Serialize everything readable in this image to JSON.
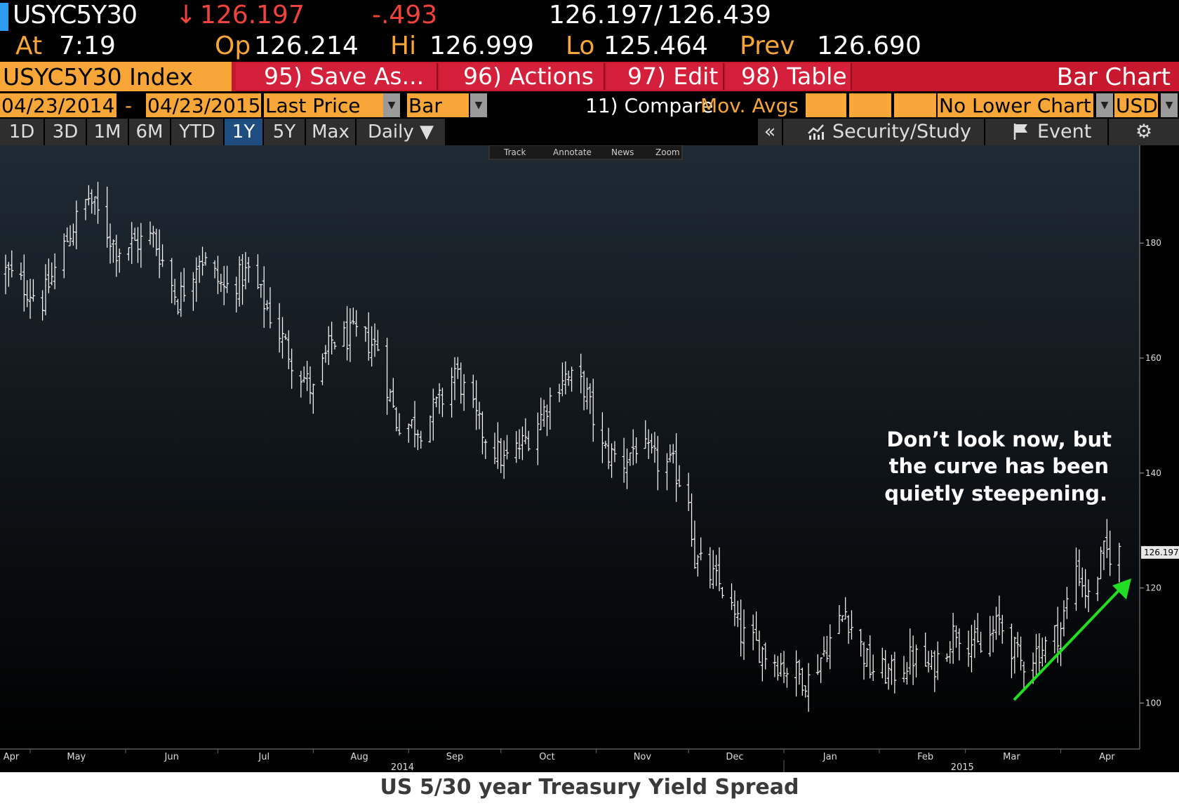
{
  "quote": {
    "ticker": "USYC5Y30",
    "last_arrow": "↓",
    "last": "126.197",
    "change": "-.493",
    "bid_ask_bid": "126.197",
    "bid_ask_sep": "/",
    "bid_ask_ask": "126.439",
    "at_label": "At",
    "time": "7:19",
    "open_label": "Op",
    "open": "126.214",
    "high_label": "Hi",
    "high": "126.999",
    "low_label": "Lo",
    "low": "125.464",
    "prev_label": "Prev",
    "prev": "126.690"
  },
  "menu": {
    "index": "USYC5Y30 Index",
    "save": "95) Save As...",
    "actions": "96) Actions ▾",
    "edit": "97) Edit ▾",
    "table": "98) Table",
    "title": "Bar Chart"
  },
  "controls": {
    "start_date": "04/23/2014",
    "dash": "-",
    "end_date": "04/23/2015",
    "field": "Last Price",
    "chart_type": "Bar",
    "compare": "11) Compare",
    "mov_avgs": "Mov. Avgs",
    "lower_chart": "No Lower Chart",
    "currency": "USD"
  },
  "periods": [
    "1D",
    "3D",
    "1M",
    "6M",
    "YTD",
    "1Y",
    "5Y",
    "Max"
  ],
  "active_period": "1Y",
  "frequency": "Daily ▼",
  "tools": {
    "collapse": "«",
    "security_study": "Security/Study",
    "event": "Event"
  },
  "mini_toolbar": [
    "Track",
    "Annotate",
    "News",
    "Zoom"
  ],
  "annotation": {
    "lines": [
      "Don’t look now, but",
      "the curve has been",
      "quietly steepening."
    ]
  },
  "caption": "US 5/30 year Treasury Yield Spread",
  "colors": {
    "background_top": "#1f2a33",
    "background_bottom": "#000000",
    "bars": "#ffffff",
    "arrow": "#22dd22",
    "accent_orange": "#f7a637",
    "accent_red": "#c8182d"
  },
  "chart_data": {
    "type": "bar",
    "subtype": "OHLC",
    "frequency": "Daily",
    "x_range": [
      "2014-04-23",
      "2015-04-23"
    ],
    "ylim": [
      92,
      197
    ],
    "ytick_values": [
      100,
      120,
      140,
      160,
      180
    ],
    "month_labels": [
      "Apr",
      "May",
      "Jun",
      "Jul",
      "Aug",
      "Sep",
      "Oct",
      "Nov",
      "Dec",
      "Jan",
      "Feb",
      "Mar",
      "Apr"
    ],
    "year_labels": [
      "2014",
      "2015"
    ],
    "last_value_label": "126.197",
    "trend_anchors": [
      {
        "date": "2014-04-23",
        "value": 175
      },
      {
        "date": "2014-05-05",
        "value": 170
      },
      {
        "date": "2014-05-14",
        "value": 182
      },
      {
        "date": "2014-05-20",
        "value": 188
      },
      {
        "date": "2014-05-29",
        "value": 179
      },
      {
        "date": "2014-06-10",
        "value": 181
      },
      {
        "date": "2014-06-18",
        "value": 170
      },
      {
        "date": "2014-06-25",
        "value": 178
      },
      {
        "date": "2014-07-03",
        "value": 172
      },
      {
        "date": "2014-07-11",
        "value": 175
      },
      {
        "date": "2014-07-25",
        "value": 160
      },
      {
        "date": "2014-08-01",
        "value": 154
      },
      {
        "date": "2014-08-07",
        "value": 163
      },
      {
        "date": "2014-08-15",
        "value": 164
      },
      {
        "date": "2014-08-22",
        "value": 162
      },
      {
        "date": "2014-08-28",
        "value": 149
      },
      {
        "date": "2014-09-05",
        "value": 148
      },
      {
        "date": "2014-09-12",
        "value": 153
      },
      {
        "date": "2014-09-16",
        "value": 158
      },
      {
        "date": "2014-09-24",
        "value": 148
      },
      {
        "date": "2014-10-02",
        "value": 142
      },
      {
        "date": "2014-10-08",
        "value": 145
      },
      {
        "date": "2014-10-14",
        "value": 150
      },
      {
        "date": "2014-10-21",
        "value": 157
      },
      {
        "date": "2014-10-28",
        "value": 155
      },
      {
        "date": "2014-11-03",
        "value": 144
      },
      {
        "date": "2014-11-10",
        "value": 142
      },
      {
        "date": "2014-11-14",
        "value": 145
      },
      {
        "date": "2014-11-20",
        "value": 142
      },
      {
        "date": "2014-11-26",
        "value": 141
      },
      {
        "date": "2014-12-01",
        "value": 136
      },
      {
        "date": "2014-12-03",
        "value": 125
      },
      {
        "date": "2014-12-12",
        "value": 120
      },
      {
        "date": "2014-12-18",
        "value": 112
      },
      {
        "date": "2015-01-02",
        "value": 106
      },
      {
        "date": "2015-01-09",
        "value": 104
      },
      {
        "date": "2015-01-15",
        "value": 110
      },
      {
        "date": "2015-01-21",
        "value": 116
      },
      {
        "date": "2015-01-29",
        "value": 106
      },
      {
        "date": "2015-02-05",
        "value": 105
      },
      {
        "date": "2015-02-12",
        "value": 108
      },
      {
        "date": "2015-02-18",
        "value": 106
      },
      {
        "date": "2015-02-26",
        "value": 113
      },
      {
        "date": "2015-03-06",
        "value": 109
      },
      {
        "date": "2015-03-12",
        "value": 114
      },
      {
        "date": "2015-03-19",
        "value": 107
      },
      {
        "date": "2015-03-27",
        "value": 110
      },
      {
        "date": "2015-04-01",
        "value": 113
      },
      {
        "date": "2015-04-06",
        "value": 124
      },
      {
        "date": "2015-04-10",
        "value": 118
      },
      {
        "date": "2015-04-15",
        "value": 126
      },
      {
        "date": "2015-04-20",
        "value": 126.197
      }
    ]
  }
}
